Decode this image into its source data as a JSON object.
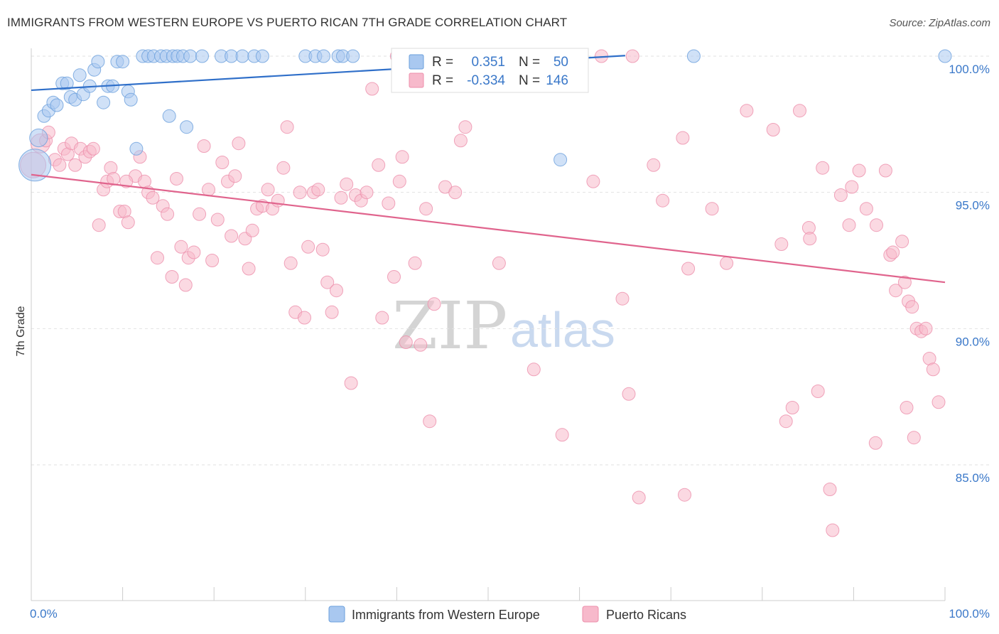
{
  "header": {
    "title": "IMMIGRANTS FROM WESTERN EUROPE VS PUERTO RICAN 7TH GRADE CORRELATION CHART",
    "source": "Source: ZipAtlas.com"
  },
  "watermark": {
    "zip": "ZIP",
    "atlas": "atlas"
  },
  "legend": {
    "r_label": "R =",
    "n_label": "N =",
    "rows": [
      {
        "r": "0.351",
        "n": "50",
        "color": "#a9c8f0"
      },
      {
        "r": "-0.334",
        "n": "146",
        "color": "#f7b9cb"
      }
    ]
  },
  "chart_data": {
    "type": "scatter",
    "title": "IMMIGRANTS FROM WESTERN EUROPE VS PUERTO RICAN 7TH GRADE CORRELATION CHART",
    "xlabel": "",
    "ylabel": "7th Grade",
    "xlim": [
      0,
      100
    ],
    "ylim": [
      80.5,
      100.5
    ],
    "x_tick_labels": [
      "0.0%",
      "100.0%"
    ],
    "y_ticks": [
      {
        "value": 100,
        "label": "100.0%"
      },
      {
        "value": 95,
        "label": "95.0%"
      },
      {
        "value": 90,
        "label": "90.0%"
      },
      {
        "value": 85,
        "label": "85.0%"
      }
    ],
    "grid": true,
    "legend_position": "top-center",
    "series": [
      {
        "name": "Immigrants from Western Europe",
        "color": "#a9c8f0",
        "edge": "#6a9fdc",
        "trend_color": "#2f6fc9",
        "r": 0.351,
        "n": 50,
        "trend": {
          "x": [
            0,
            65
          ],
          "y": [
            98.75,
            100.02
          ]
        },
        "points": [
          [
            0.4,
            96.0,
            2.5
          ],
          [
            0.8,
            97.0,
            1.4
          ],
          [
            1.4,
            97.8,
            1
          ],
          [
            1.9,
            98.0,
            1
          ],
          [
            2.4,
            98.3,
            1
          ],
          [
            2.8,
            98.2,
            1
          ],
          [
            3.4,
            99.0,
            1
          ],
          [
            3.9,
            99.0,
            1
          ],
          [
            4.3,
            98.5,
            1
          ],
          [
            4.8,
            98.4,
            1
          ],
          [
            5.3,
            99.3,
            1
          ],
          [
            5.7,
            98.6,
            1
          ],
          [
            6.4,
            98.9,
            1
          ],
          [
            6.9,
            99.5,
            1
          ],
          [
            7.3,
            99.8,
            1
          ],
          [
            7.9,
            98.3,
            1
          ],
          [
            8.4,
            98.9,
            1
          ],
          [
            8.9,
            98.9,
            1
          ],
          [
            9.4,
            99.8,
            1
          ],
          [
            10.0,
            99.8,
            1
          ],
          [
            10.6,
            98.7,
            1
          ],
          [
            10.9,
            98.4,
            1
          ],
          [
            11.5,
            96.6,
            1
          ],
          [
            12.2,
            100.0,
            1
          ],
          [
            12.8,
            100.0,
            1
          ],
          [
            13.4,
            100.0,
            1
          ],
          [
            14.2,
            100.0,
            1
          ],
          [
            14.8,
            100.0,
            1
          ],
          [
            15.1,
            97.8,
            1
          ],
          [
            15.5,
            100.0,
            1
          ],
          [
            16.0,
            100.0,
            1
          ],
          [
            16.6,
            100.0,
            1
          ],
          [
            17.0,
            97.4,
            1
          ],
          [
            17.4,
            100.0,
            1
          ],
          [
            18.7,
            100.0,
            1
          ],
          [
            20.8,
            100.0,
            1
          ],
          [
            21.9,
            100.0,
            1
          ],
          [
            23.1,
            100.0,
            1
          ],
          [
            24.4,
            100.0,
            1
          ],
          [
            25.3,
            100.0,
            1
          ],
          [
            30.0,
            100.0,
            1
          ],
          [
            31.1,
            100.0,
            1
          ],
          [
            32.0,
            100.0,
            1
          ],
          [
            33.6,
            100.0,
            1
          ],
          [
            34.1,
            100.0,
            1
          ],
          [
            35.2,
            100.0,
            1
          ],
          [
            40.1,
            100.0,
            1
          ],
          [
            57.9,
            96.2,
            1
          ],
          [
            72.5,
            100.0,
            1
          ],
          [
            100.0,
            100.0,
            1
          ]
        ]
      },
      {
        "name": "Puerto Ricans",
        "color": "#f7b9cb",
        "edge": "#ec8fab",
        "trend_color": "#e0648d",
        "r": -0.334,
        "n": 146,
        "trend": {
          "x": [
            0,
            100
          ],
          "y": [
            95.65,
            91.7
          ]
        },
        "points": [
          [
            0.2,
            96.0,
            2.0
          ],
          [
            1.0,
            96.8,
            1.5
          ],
          [
            1.6,
            96.9,
            1
          ],
          [
            1.9,
            97.2,
            1
          ],
          [
            2.6,
            96.2,
            1
          ],
          [
            3.1,
            96.0,
            1
          ],
          [
            3.6,
            96.6,
            1
          ],
          [
            4.0,
            96.4,
            1
          ],
          [
            4.4,
            96.8,
            1
          ],
          [
            4.8,
            96.0,
            1
          ],
          [
            5.4,
            96.6,
            1
          ],
          [
            5.9,
            96.3,
            1
          ],
          [
            6.4,
            96.5,
            1
          ],
          [
            6.8,
            96.6,
            1
          ],
          [
            7.4,
            93.8,
            1
          ],
          [
            7.9,
            95.1,
            1
          ],
          [
            8.3,
            95.4,
            1
          ],
          [
            8.7,
            95.9,
            1
          ],
          [
            9.0,
            95.5,
            1
          ],
          [
            9.7,
            94.3,
            1
          ],
          [
            10.2,
            94.3,
            1
          ],
          [
            10.6,
            93.9,
            1
          ],
          [
            11.4,
            95.6,
            1
          ],
          [
            11.9,
            96.3,
            1
          ],
          [
            12.4,
            95.4,
            1
          ],
          [
            12.8,
            95.0,
            1
          ],
          [
            13.3,
            94.8,
            1
          ],
          [
            13.8,
            92.6,
            1
          ],
          [
            14.4,
            94.5,
            1
          ],
          [
            14.9,
            94.2,
            1
          ],
          [
            15.4,
            91.9,
            1
          ],
          [
            15.9,
            95.5,
            1
          ],
          [
            16.4,
            93.0,
            1
          ],
          [
            16.9,
            91.6,
            1
          ],
          [
            17.2,
            92.6,
            1
          ],
          [
            17.8,
            92.8,
            1
          ],
          [
            18.4,
            94.2,
            1
          ],
          [
            18.9,
            96.7,
            1
          ],
          [
            19.4,
            95.1,
            1
          ],
          [
            19.8,
            92.5,
            1
          ],
          [
            20.4,
            94.0,
            1
          ],
          [
            20.9,
            96.1,
            1
          ],
          [
            21.5,
            95.4,
            1
          ],
          [
            21.9,
            93.4,
            1
          ],
          [
            22.3,
            95.6,
            1
          ],
          [
            22.7,
            96.8,
            1
          ],
          [
            23.4,
            93.3,
            1
          ],
          [
            23.8,
            92.2,
            1
          ],
          [
            24.2,
            93.6,
            1
          ],
          [
            24.7,
            94.4,
            1
          ],
          [
            25.3,
            94.5,
            1
          ],
          [
            25.9,
            95.1,
            1
          ],
          [
            26.4,
            94.4,
            1
          ],
          [
            27.0,
            94.7,
            1
          ],
          [
            27.6,
            95.9,
            1
          ],
          [
            28.0,
            97.4,
            1
          ],
          [
            28.4,
            92.4,
            1
          ],
          [
            28.9,
            90.6,
            1
          ],
          [
            29.4,
            95.0,
            1
          ],
          [
            29.9,
            90.4,
            1
          ],
          [
            30.3,
            93.0,
            1
          ],
          [
            30.9,
            95.0,
            1
          ],
          [
            31.4,
            95.1,
            1
          ],
          [
            31.9,
            92.9,
            1
          ],
          [
            32.4,
            91.7,
            1
          ],
          [
            32.9,
            90.6,
            1
          ],
          [
            33.4,
            91.4,
            1
          ],
          [
            33.9,
            94.8,
            1
          ],
          [
            34.5,
            95.3,
            1
          ],
          [
            35.0,
            88.0,
            1
          ],
          [
            35.5,
            94.9,
            1
          ],
          [
            36.1,
            94.7,
            1
          ],
          [
            36.7,
            95.0,
            1
          ],
          [
            37.3,
            98.8,
            1
          ],
          [
            38.0,
            96.0,
            1
          ],
          [
            38.4,
            90.4,
            1
          ],
          [
            39.1,
            94.6,
            1
          ],
          [
            39.7,
            91.9,
            1
          ],
          [
            40.3,
            95.4,
            1
          ],
          [
            40.6,
            96.3,
            1
          ],
          [
            41.0,
            89.5,
            1
          ],
          [
            42.0,
            92.4,
            1
          ],
          [
            42.6,
            89.4,
            1
          ],
          [
            43.2,
            94.4,
            1
          ],
          [
            43.6,
            86.6,
            1
          ],
          [
            44.1,
            90.9,
            1
          ],
          [
            45.3,
            95.2,
            1
          ],
          [
            46.4,
            95.0,
            1
          ],
          [
            47.0,
            96.9,
            1
          ],
          [
            47.5,
            97.4,
            1
          ],
          [
            51.2,
            92.4,
            1
          ],
          [
            55.0,
            88.5,
            1
          ],
          [
            58.1,
            86.1,
            1
          ],
          [
            61.5,
            95.4,
            1
          ],
          [
            65.4,
            87.6,
            1
          ],
          [
            66.5,
            83.8,
            1
          ],
          [
            68.1,
            96.0,
            1
          ],
          [
            69.1,
            94.7,
            1
          ],
          [
            71.5,
            83.9,
            1
          ],
          [
            71.9,
            92.2,
            1
          ],
          [
            74.5,
            94.4,
            1
          ],
          [
            76.1,
            92.4,
            1
          ],
          [
            78.3,
            98.0,
            1
          ],
          [
            81.2,
            97.3,
            1
          ],
          [
            82.1,
            93.1,
            1
          ],
          [
            82.6,
            86.6,
            1
          ],
          [
            83.3,
            87.1,
            1
          ],
          [
            84.1,
            98.0,
            1
          ],
          [
            85.1,
            93.7,
            1
          ],
          [
            85.2,
            93.3,
            1
          ],
          [
            86.1,
            87.7,
            1
          ],
          [
            86.6,
            95.9,
            1
          ],
          [
            87.4,
            84.1,
            1
          ],
          [
            87.7,
            82.6,
            1
          ],
          [
            88.6,
            94.9,
            1
          ],
          [
            89.5,
            93.8,
            1
          ],
          [
            89.8,
            95.2,
            1
          ],
          [
            90.6,
            95.8,
            1
          ],
          [
            91.4,
            94.4,
            1
          ],
          [
            92.4,
            85.8,
            1
          ],
          [
            92.5,
            93.8,
            1
          ],
          [
            93.5,
            95.8,
            1
          ],
          [
            94.0,
            92.7,
            1
          ],
          [
            94.3,
            92.8,
            1
          ],
          [
            94.6,
            91.4,
            1
          ],
          [
            95.3,
            93.2,
            1
          ],
          [
            95.6,
            91.7,
            1
          ],
          [
            96.0,
            91.0,
            1
          ],
          [
            96.4,
            90.8,
            1
          ],
          [
            96.9,
            90.0,
            1
          ],
          [
            97.4,
            89.9,
            1
          ],
          [
            97.9,
            90.0,
            1
          ],
          [
            98.3,
            88.9,
            1
          ],
          [
            98.7,
            88.5,
            1
          ],
          [
            99.3,
            87.3,
            1
          ],
          [
            95.8,
            87.1,
            1
          ],
          [
            64.7,
            91.1,
            1
          ],
          [
            71.3,
            97.0,
            1
          ],
          [
            96.6,
            86.0,
            1
          ],
          [
            10.4,
            95.4,
            1
          ],
          [
            40.0,
            100.0,
            1
          ],
          [
            49.2,
            100.0,
            1
          ],
          [
            55.3,
            100.0,
            1
          ],
          [
            57.6,
            100.0,
            1
          ],
          [
            62.4,
            100.0,
            1
          ],
          [
            65.8,
            100.0,
            1
          ]
        ]
      }
    ]
  },
  "bottom_legend": [
    {
      "label": "Immigrants from Western Europe",
      "color": "#a9c8f0"
    },
    {
      "label": "Puerto Ricans",
      "color": "#f7b9cb"
    }
  ]
}
